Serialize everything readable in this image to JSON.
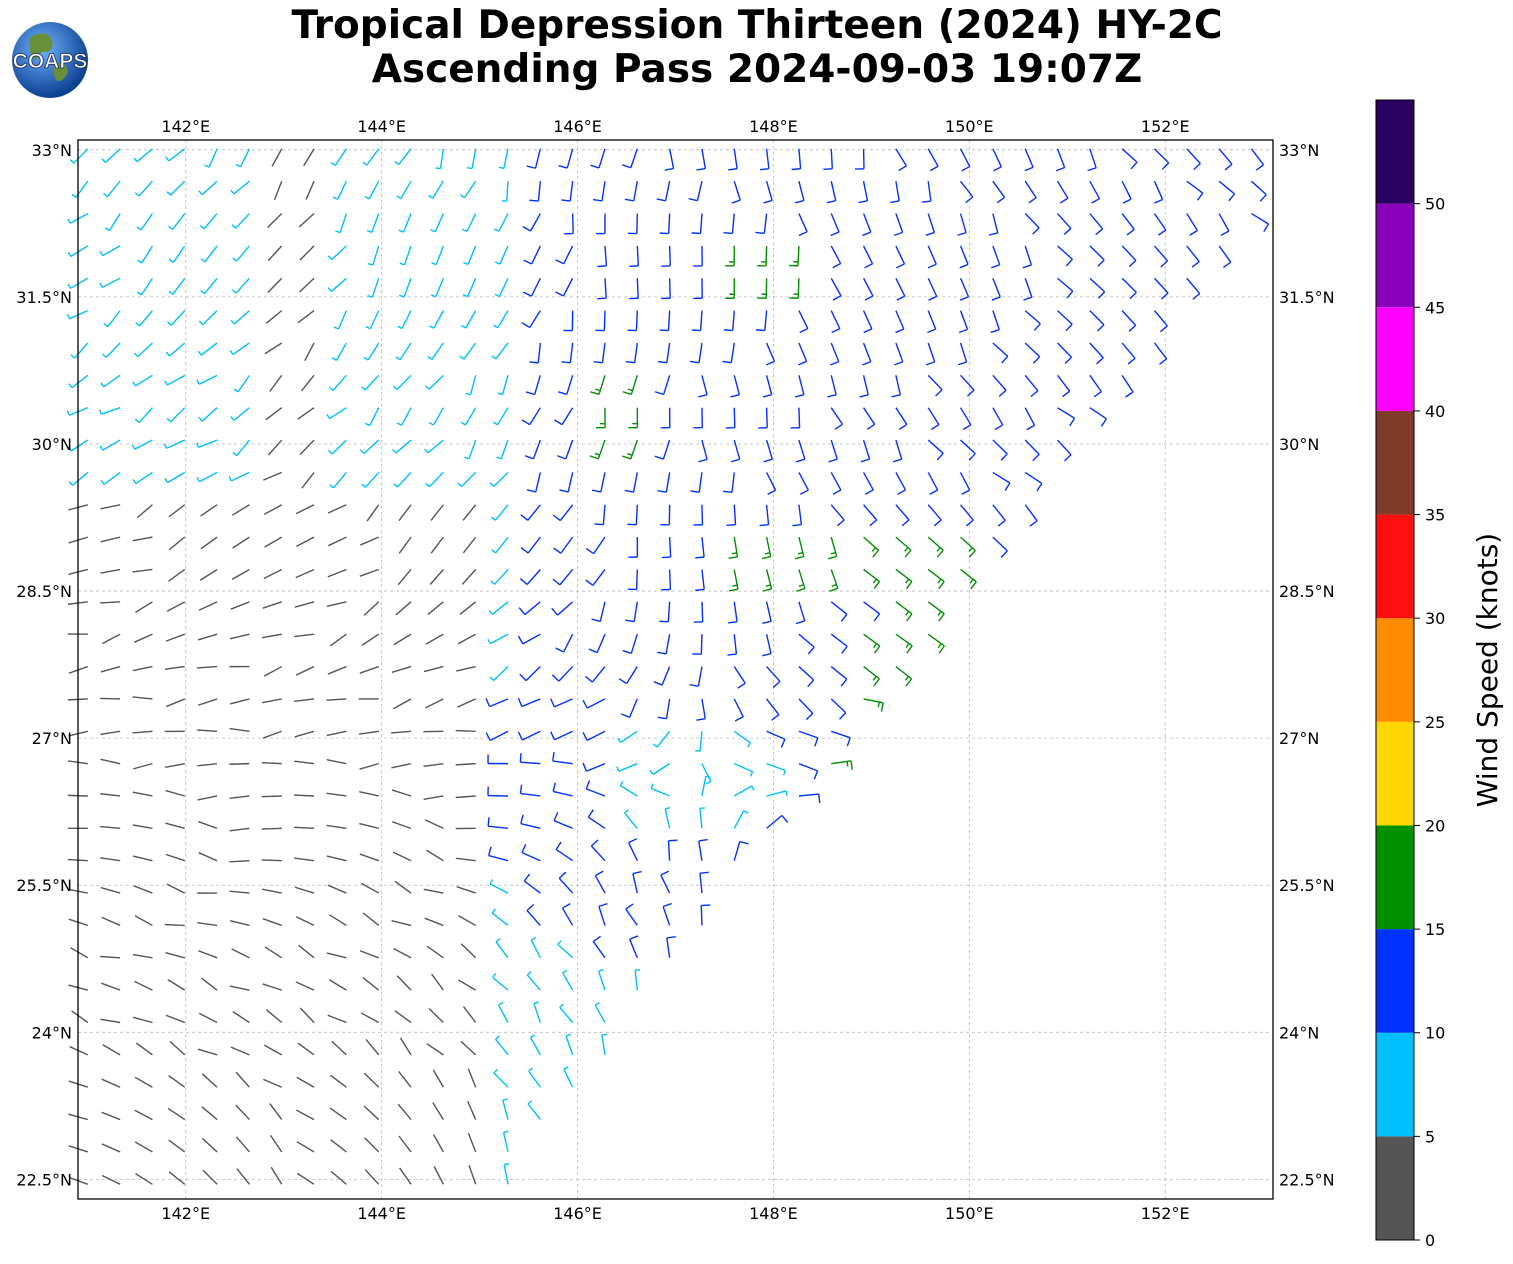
{
  "title": {
    "line1": "Tropical Depression Thirteen (2024) HY-2C",
    "line2": "Ascending Pass 2024-09-03 19:07Z"
  },
  "logo": {
    "text": "COAPS"
  },
  "axes": {
    "lon_ticks": [
      "142°E",
      "144°E",
      "146°E",
      "148°E",
      "150°E",
      "152°E"
    ],
    "lat_ticks": [
      "33°N",
      "31.5°N",
      "30°N",
      "28.5°N",
      "27°N",
      "25.5°N",
      "24°N",
      "22.5°N"
    ],
    "lon_values": [
      142,
      144,
      146,
      148,
      150,
      152
    ],
    "lat_values": [
      33,
      31.5,
      30,
      28.5,
      27,
      25.5,
      24,
      22.5
    ],
    "lon_range": [
      140.9,
      153.1
    ],
    "lat_range": [
      22.3,
      33.1
    ]
  },
  "colorbar": {
    "label": "Wind Speed (knots)",
    "ticks": [
      "0",
      "5",
      "10",
      "15",
      "20",
      "25",
      "30",
      "35",
      "40",
      "45",
      "50"
    ],
    "tick_values": [
      0,
      5,
      10,
      15,
      20,
      25,
      30,
      35,
      40,
      45,
      50
    ],
    "range": [
      0,
      55
    ],
    "bins": [
      {
        "from": 0,
        "to": 5,
        "color": "#555555"
      },
      {
        "from": 5,
        "to": 10,
        "color": "#00bfff"
      },
      {
        "from": 10,
        "to": 15,
        "color": "#0033ff"
      },
      {
        "from": 15,
        "to": 20,
        "color": "#009000"
      },
      {
        "from": 20,
        "to": 25,
        "color": "#ffd700"
      },
      {
        "from": 25,
        "to": 30,
        "color": "#ff8c00"
      },
      {
        "from": 30,
        "to": 35,
        "color": "#ff1010"
      },
      {
        "from": 35,
        "to": 40,
        "color": "#7f3a2a"
      },
      {
        "from": 40,
        "to": 45,
        "color": "#ff00ff"
      },
      {
        "from": 45,
        "to": 50,
        "color": "#8800bb"
      },
      {
        "from": 50,
        "to": 55,
        "color": "#2a0060"
      }
    ]
  },
  "chart_data": {
    "type": "wind-barb-map",
    "center": {
      "lon": 147.2,
      "lat": 26.6
    },
    "swath_edge": [
      {
        "lon": 145.2,
        "lat": 22.3
      },
      {
        "lon": 153.1,
        "lat": 32.6
      }
    ],
    "grid": true
  }
}
